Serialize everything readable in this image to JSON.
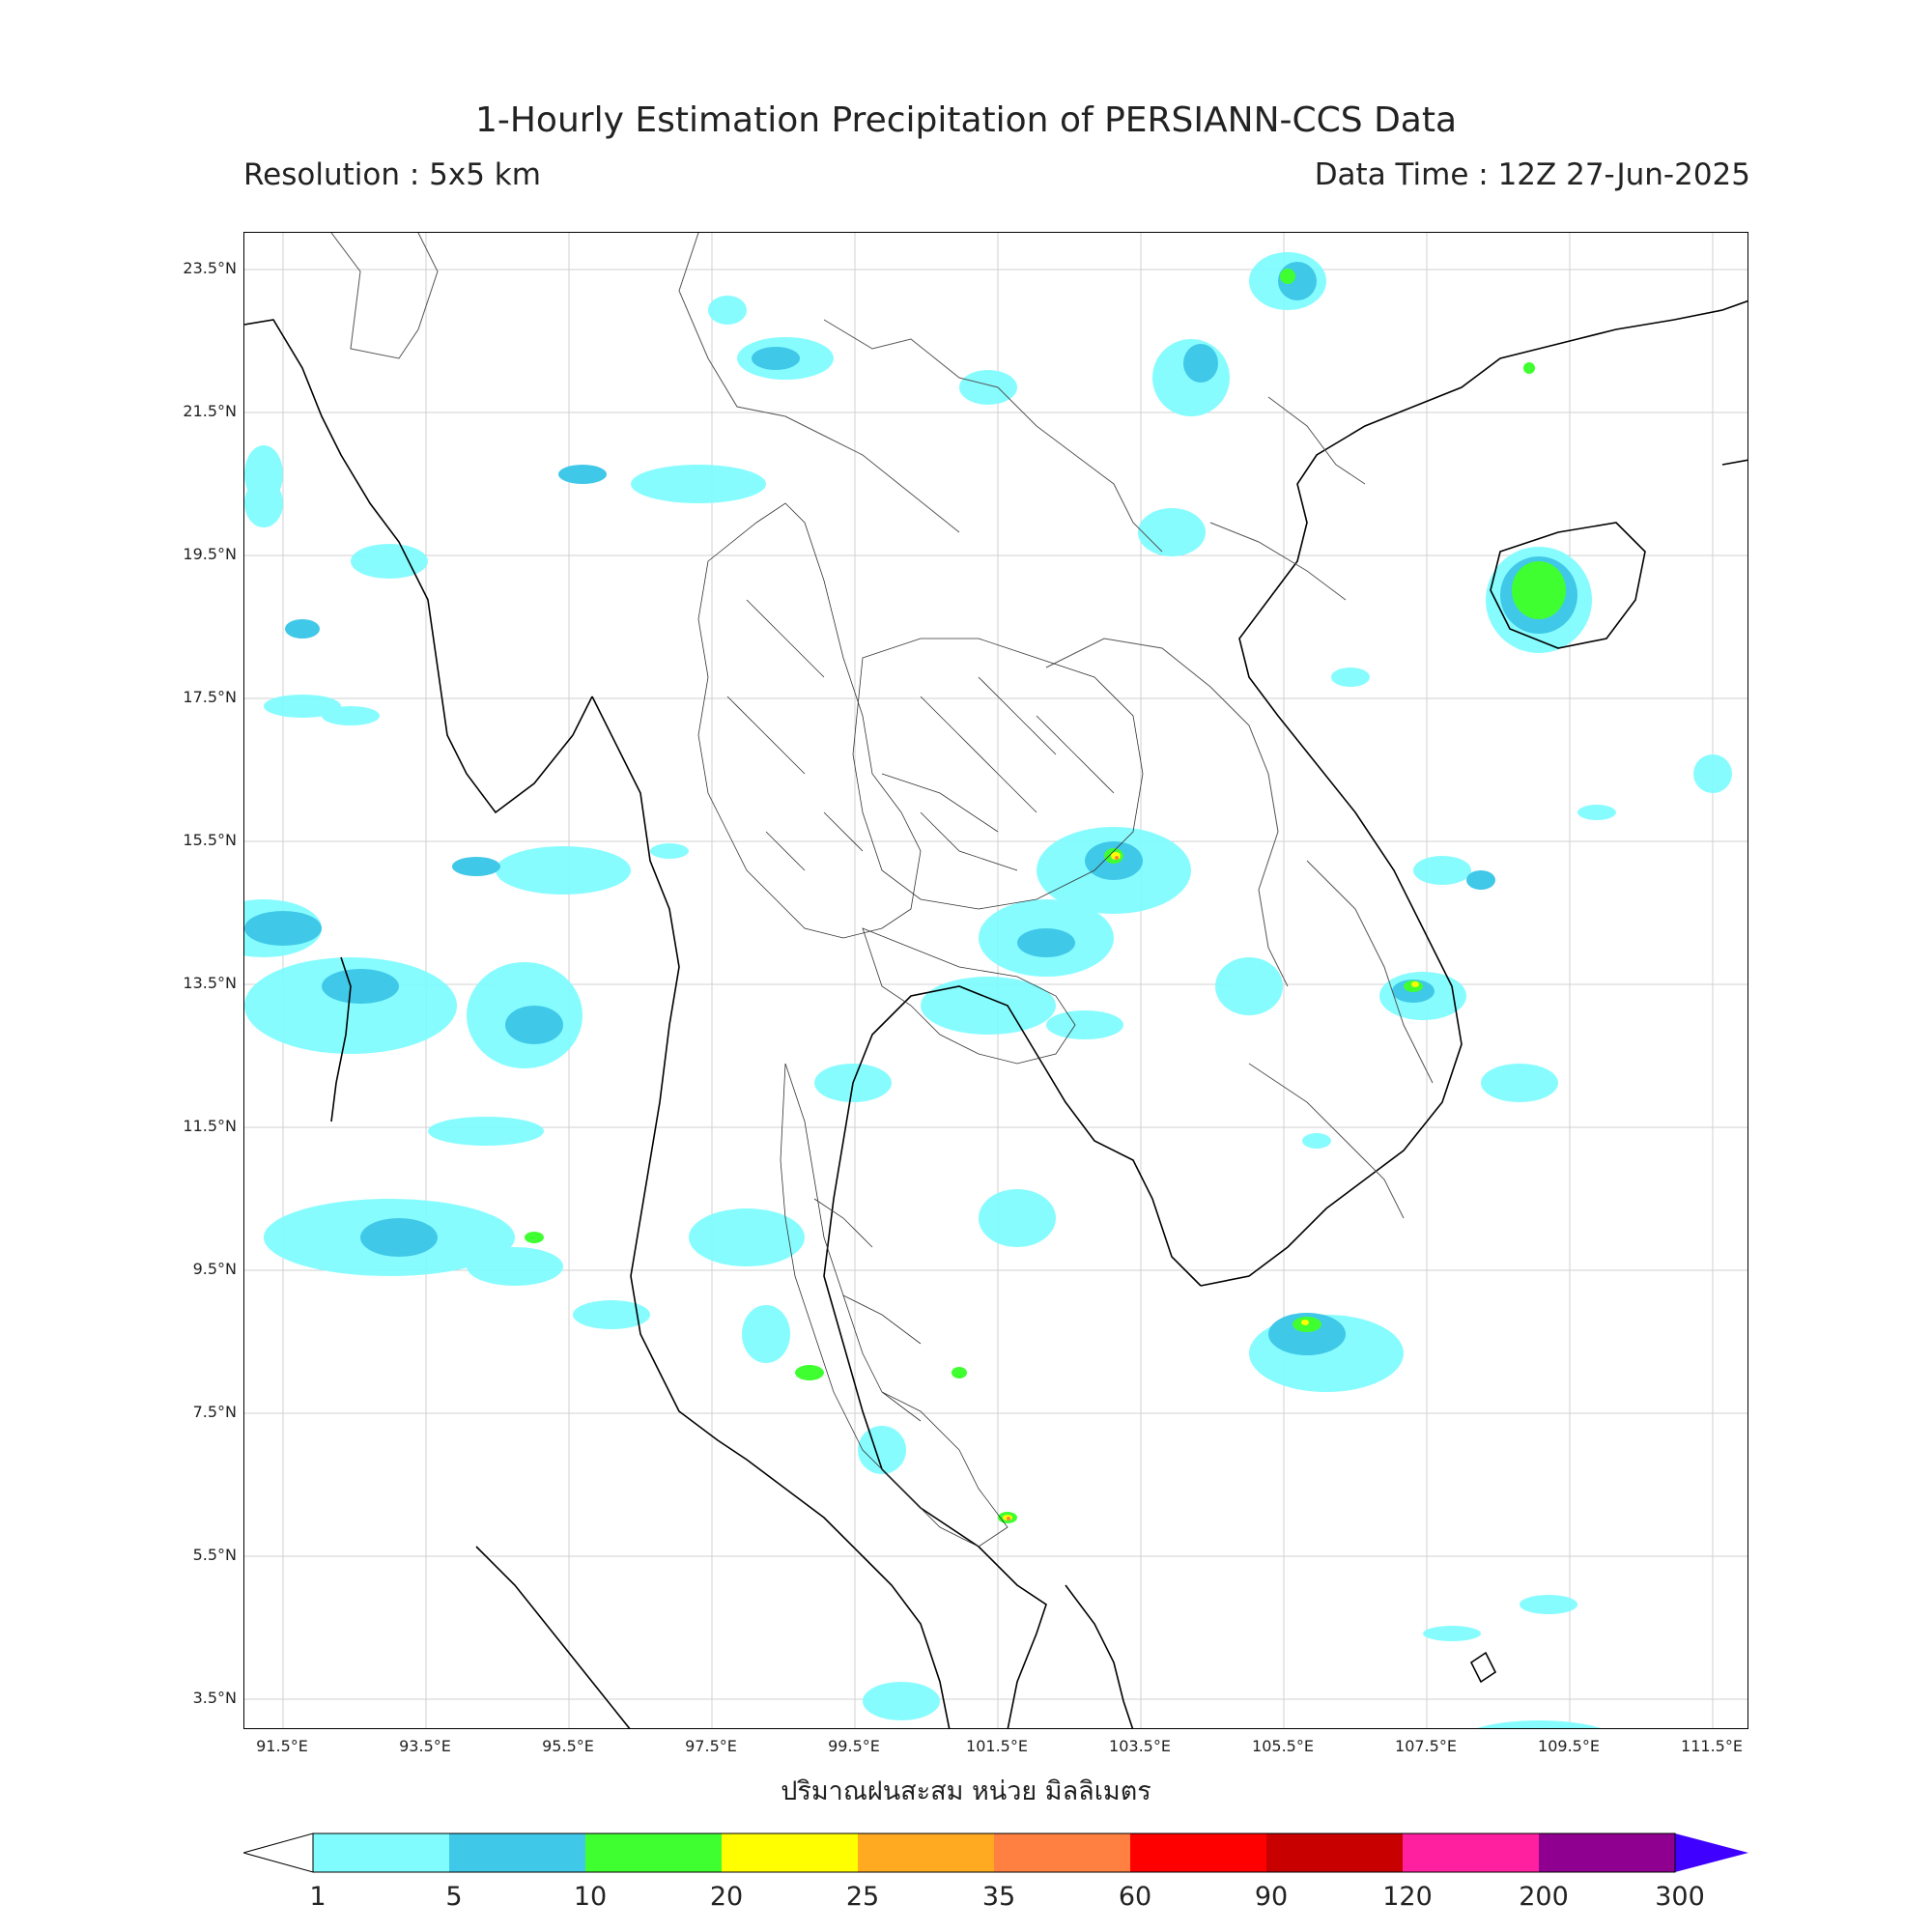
{
  "header": {
    "title": "1-Hourly Estimation Precipitation of PERSIANN-CCS Data",
    "resolution": "Resolution : 5x5 km",
    "data_time": "Data Time : 12Z 27-Jun-2025"
  },
  "axes": {
    "lat_ticks": [
      "23.5°N",
      "21.5°N",
      "19.5°N",
      "17.5°N",
      "15.5°N",
      "13.5°N",
      "11.5°N",
      "9.5°N",
      "7.5°N",
      "5.5°N",
      "3.5°N"
    ],
    "lon_ticks": [
      "91.5°E",
      "93.5°E",
      "95.5°E",
      "97.5°E",
      "99.5°E",
      "101.5°E",
      "103.5°E",
      "105.5°E",
      "107.5°E",
      "109.5°E",
      "111.5°E"
    ],
    "xlabel": "ปริมาณฝนสะสม หน่วย มิลลิเมตร"
  },
  "colorbar": {
    "labels": [
      "1",
      "5",
      "10",
      "20",
      "25",
      "35",
      "60",
      "90",
      "120",
      "200",
      "300"
    ],
    "colors": [
      "#80fcff",
      "#40c8e8",
      "#40ff30",
      "#ffff00",
      "#ffaa20",
      "#ff8040",
      "#ff0000",
      "#c80000",
      "#ff20a0",
      "#900090",
      "#4000ff"
    ]
  },
  "legend_colors": {
    "light_rain": "#80fcff",
    "moderate_rain": "#40c8e8",
    "heavy_rain": "#40ff30",
    "very_heavy": "#ffff00"
  }
}
